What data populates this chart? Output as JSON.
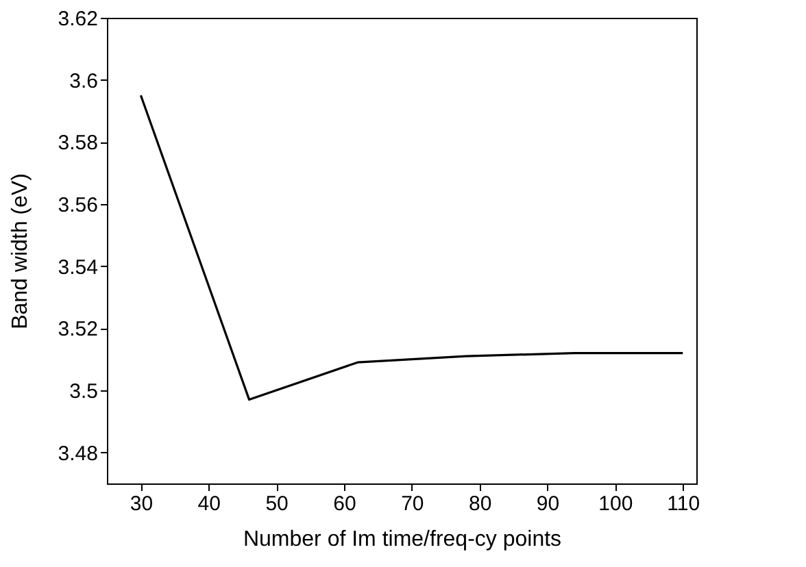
{
  "chart_data": {
    "type": "line",
    "xlabel": "Number of Im time/freq-cy points",
    "ylabel": "Band width (eV)",
    "x": [
      30,
      46,
      62,
      78,
      94,
      110
    ],
    "series": [
      {
        "color": "#000000",
        "values": [
          3.595,
          3.497,
          3.509,
          3.511,
          3.512,
          3.512
        ]
      }
    ],
    "xlim": [
      25,
      112
    ],
    "ylim": [
      3.47,
      3.62
    ],
    "xticks": [
      30,
      40,
      50,
      60,
      70,
      80,
      90,
      100,
      110
    ],
    "yticks": [
      3.48,
      3.5,
      3.52,
      3.54,
      3.56,
      3.58,
      3.6,
      3.62
    ],
    "grid": false,
    "marker": "none",
    "line_style": "solid"
  }
}
